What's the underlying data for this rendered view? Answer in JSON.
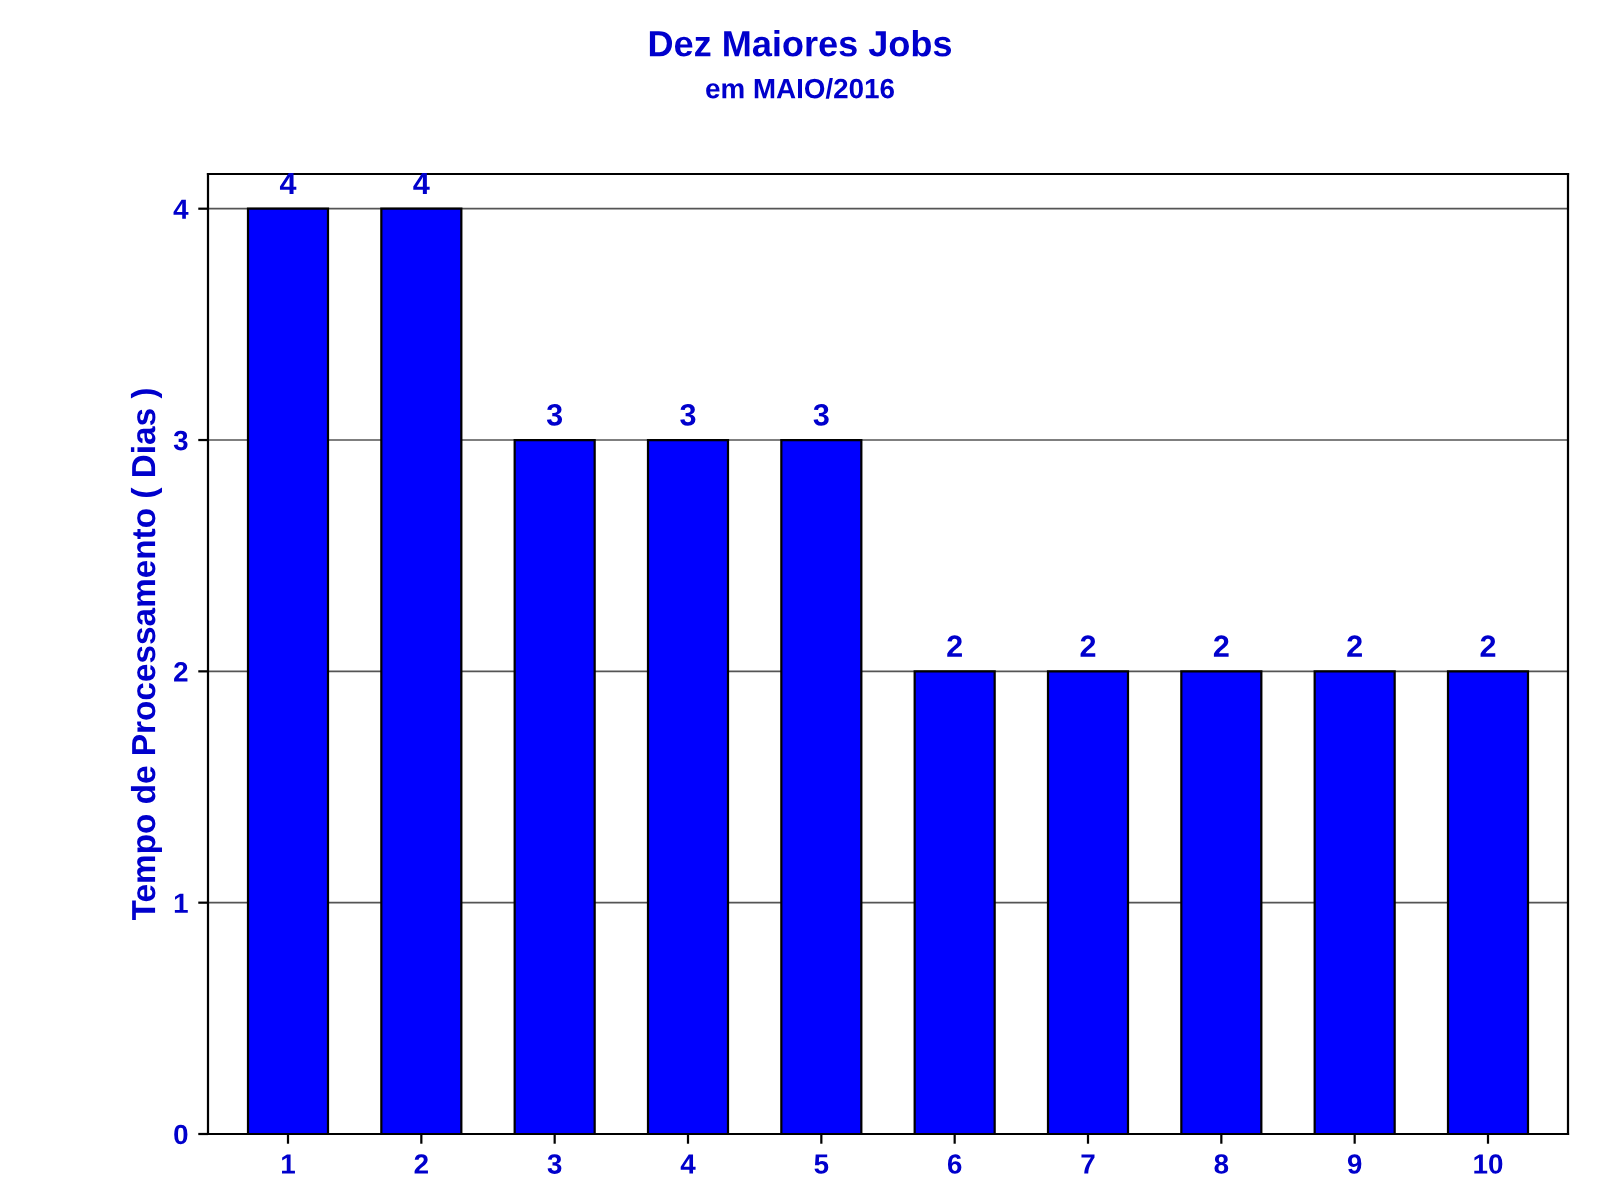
{
  "chart_data": {
    "type": "bar",
    "title": "Dez Maiores Jobs",
    "subtitle": "em MAIO/2016",
    "ylabel": "Tempo de Processamento ( Dias )",
    "categories": [
      "1",
      "2",
      "3",
      "4",
      "5",
      "6",
      "7",
      "8",
      "9",
      "10"
    ],
    "values": [
      4,
      4,
      3,
      3,
      3,
      2,
      2,
      2,
      2,
      2
    ],
    "color": "#0000ff",
    "ylim": [
      0,
      4.15
    ],
    "yticks": [
      0,
      1,
      2,
      3,
      4
    ],
    "grid": "y",
    "data_labels": true
  }
}
